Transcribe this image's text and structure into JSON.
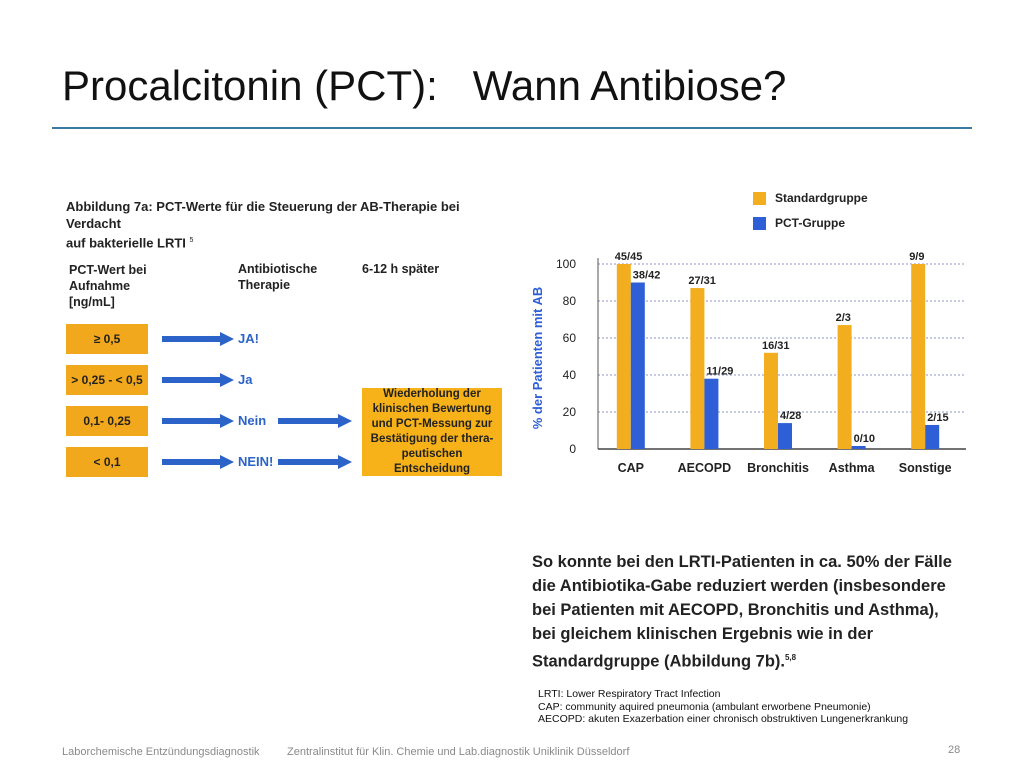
{
  "slide": {
    "title": "Procalcitonin (PCT):   Wann Antibiose?",
    "page_number": "28"
  },
  "figure": {
    "caption_line1": "Abbildung 7a: PCT-Werte für die Steuerung der AB-Therapie bei Verdacht",
    "caption_line2": "auf bakterielle LRTI",
    "caption_ref": "5",
    "col1_header": [
      "PCT-Wert bei",
      "Aufnahme",
      "[ng/mL]"
    ],
    "col2_header": [
      "Antibiotische",
      "Therapie"
    ],
    "col3_header": "6-12 h später",
    "rows": [
      {
        "threshold": "≥ 0,5",
        "therapy": "JA!"
      },
      {
        "threshold": "> 0,25 - < 0,5",
        "therapy": "Ja"
      },
      {
        "threshold": "0,1- 0,25",
        "therapy": "Nein"
      },
      {
        "threshold": "< 0,1",
        "therapy": "NEIN!"
      }
    ],
    "repeat_box": [
      "Wiederholung der",
      "klinischen Bewertung",
      "und PCT-Messung zur",
      "Bestätigung der thera-",
      "peutischen Entscheidung"
    ]
  },
  "chart_data": {
    "type": "bar",
    "ylabel": "% der Patienten mit AB",
    "ylim": [
      0,
      100
    ],
    "yticks": [
      0,
      20,
      40,
      60,
      80,
      100
    ],
    "categories": [
      "CAP",
      "AECOPD",
      "Bronchitis",
      "Asthma",
      "Sonstige"
    ],
    "series": [
      {
        "name": "Standardgruppe",
        "color": "#f2ae1e",
        "values": [
          100,
          87,
          52,
          67,
          100
        ],
        "labels": [
          "45/45",
          "27/31",
          "16/31",
          "2/3",
          "9/9"
        ]
      },
      {
        "name": "PCT-Gruppe",
        "color": "#2e5fd6",
        "values": [
          90,
          38,
          14,
          0,
          13
        ],
        "labels": [
          "38/42",
          "11/29",
          "4/28",
          "0/10",
          "2/15"
        ]
      }
    ],
    "legend_position": "top-right",
    "grid": true
  },
  "conclusion": {
    "lines": [
      "So konnte bei den LRTI-Patienten in ca. 50% der Fälle",
      "die Antibiotika-Gabe reduziert werden (insbesondere",
      "bei Patienten mit AECOPD, Bronchitis und Asthma),",
      "bei gleichem klinischen Ergebnis wie in der",
      "Standardgruppe (Abbildung 7b)."
    ],
    "ref": "5,8"
  },
  "abbreviations": [
    "LRTI: Lower Respiratory Tract Infection",
    "CAP: community aquired pneumonia (ambulant erworbene Pneumonie)",
    "AECOPD:  akuten Exazerbation einer chronisch obstruktiven Lungenerkrankung"
  ],
  "footer": {
    "left": "Laborchemische Entzündungsdiagnostik",
    "center": "Zentralinstitut für Klin. Chemie und Lab.diagnostik Uniklinik Düsseldorf"
  },
  "colors": {
    "accent_rule": "#3d7aa3",
    "arrow": "#2b63c8",
    "box_orange": "#f2a81c"
  }
}
